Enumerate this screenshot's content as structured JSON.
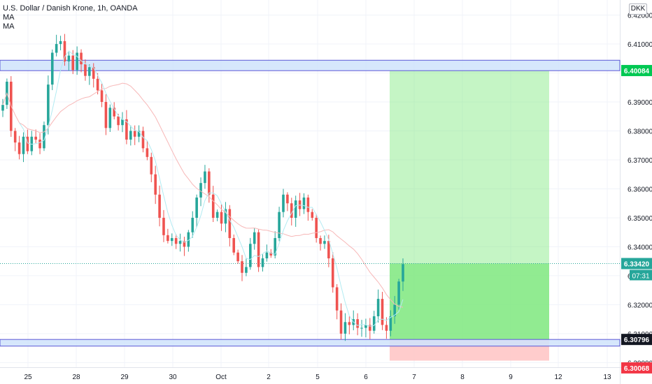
{
  "header": {
    "title": "U.S. Dollar / Danish Krone, 1h, OANDA",
    "indicators": [
      "MA",
      "MA"
    ],
    "currency": "DKK"
  },
  "colors": {
    "up": "#26a69a",
    "down": "#ef5350",
    "ma_fast": "#b2ebf2",
    "ma_slow": "#f7b8b8",
    "zone_fill": "#cfe3fb",
    "zone_border": "#5b58d6",
    "profit": "#7ee87e",
    "stop": "#ffc7c7",
    "last_price": "#26a69a",
    "target_label": "#00c853",
    "stop_label": "#f23645",
    "grid": "#f0f3fa"
  },
  "chart_data": {
    "type": "candlestick",
    "symbol": "USDDKK",
    "interval": "1h",
    "ylim": [
      6.2984,
      6.4252
    ],
    "y_ticks": [
      "6.42000",
      "6.41000",
      "6.40000",
      "6.39000",
      "6.38000",
      "6.37000",
      "6.36000",
      "6.35000",
      "6.34000",
      "6.33000",
      "6.32000",
      "6.31000",
      "6.30000"
    ],
    "x_ticks": [
      "25",
      "28",
      "29",
      "30",
      "Oct",
      "2",
      "5",
      "6",
      "7",
      "8",
      "9",
      "12",
      "13"
    ],
    "resistance_zone": [
      6.4008,
      6.4044
    ],
    "support_zone": [
      6.3057,
      6.308
    ],
    "position": {
      "entry": 6.3342,
      "target": 6.40084,
      "stop": 6.30068
    },
    "price_labels": {
      "target": "6.40084",
      "last": "6.33420",
      "countdown": "07:31",
      "support": "6.30796",
      "stop": "6.30068"
    },
    "price_path": [
      6.389,
      6.397,
      6.38,
      6.376,
      6.372,
      6.378,
      6.373,
      6.378,
      6.377,
      6.374,
      6.382,
      6.396,
      6.407,
      6.41,
      6.411,
      6.404,
      6.406,
      6.401,
      6.407,
      6.403,
      6.399,
      6.402,
      6.398,
      6.394,
      6.39,
      6.381,
      6.388,
      6.385,
      6.382,
      6.384,
      6.377,
      6.38,
      6.378,
      6.38,
      6.374,
      6.371,
      6.365,
      6.358,
      6.35,
      6.344,
      6.342,
      6.343,
      6.341,
      6.342,
      6.34,
      6.345,
      6.35,
      6.357,
      6.362,
      6.366,
      6.358,
      6.35,
      6.352,
      6.348,
      6.353,
      6.343,
      6.338,
      6.335,
      6.331,
      6.333,
      6.341,
      6.345,
      6.333,
      6.336,
      6.338,
      6.337,
      6.343,
      6.352,
      6.358,
      6.355,
      6.35,
      6.356,
      6.353,
      6.357,
      6.352,
      6.35,
      6.343,
      6.341,
      6.342,
      6.336,
      6.326,
      6.318,
      6.31,
      6.314,
      6.313,
      6.315,
      6.312,
      6.312,
      6.313,
      6.311,
      6.316,
      6.322,
      6.313,
      6.311,
      6.316,
      6.32,
      6.328,
      6.334
    ]
  }
}
